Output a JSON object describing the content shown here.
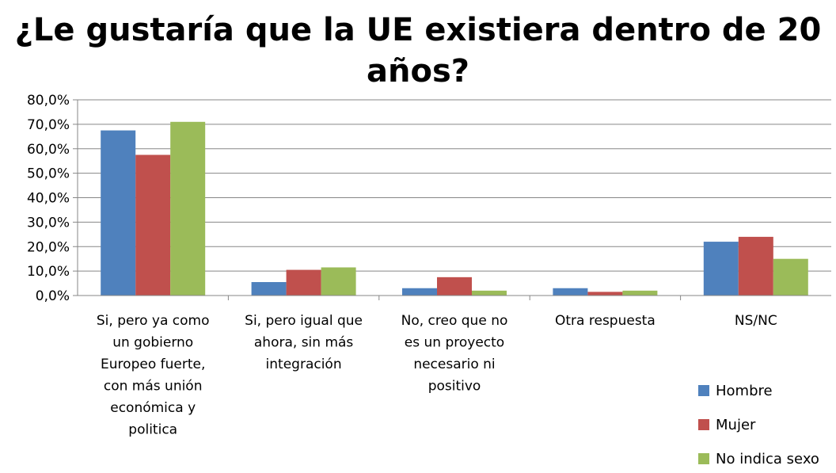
{
  "chart_data": {
    "type": "bar",
    "title_lines": [
      "¿Le gustaría que la UE existiera dentro de 20",
      "años?"
    ],
    "xlabel": "",
    "ylabel": "",
    "ylim": [
      0,
      80
    ],
    "y_ticks": [
      "0,0%",
      "10,0%",
      "20,0%",
      "30,0%",
      "40,0%",
      "50,0%",
      "60,0%",
      "70,0%",
      "80,0%"
    ],
    "grid": true,
    "legend_position": "bottom-right",
    "categories": [
      [
        "Si, pero ya como",
        "un gobierno",
        "Europeo fuerte,",
        "con más unión",
        "económica y",
        "politica"
      ],
      [
        "Si, pero igual que",
        "ahora, sin más",
        "integración"
      ],
      [
        "No, creo que no",
        "es un proyecto",
        "necesario ni",
        "positivo"
      ],
      [
        "Otra respuesta"
      ],
      [
        "NS/NC"
      ]
    ],
    "series": [
      {
        "name": "Hombre",
        "color": "#4f81bd",
        "values": [
          67.5,
          5.5,
          3.0,
          3.0,
          22.0
        ]
      },
      {
        "name": "Mujer",
        "color": "#c0504d",
        "values": [
          57.5,
          10.5,
          7.5,
          1.5,
          24.0
        ]
      },
      {
        "name": "No indica sexo",
        "color": "#9bbb59",
        "values": [
          71.0,
          11.5,
          2.0,
          2.0,
          15.0
        ]
      }
    ]
  }
}
